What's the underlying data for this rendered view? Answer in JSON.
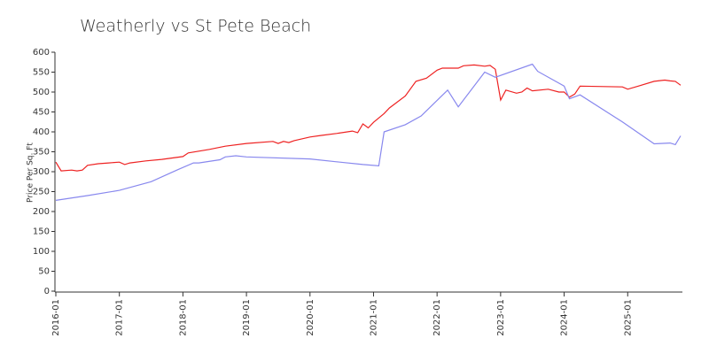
{
  "chart_data": {
    "type": "line",
    "title": "Weatherly vs St Pete Beach",
    "y_label": "Price Per Sq. Ft",
    "xlim": [
      "2016-01",
      "2025-11"
    ],
    "xticks": [
      "2016-01",
      "2017-01",
      "2018-01",
      "2019-01",
      "2020-01",
      "2021-01",
      "2022-01",
      "2023-01",
      "2024-01",
      "2025-01"
    ],
    "ylim": [
      0,
      600
    ],
    "yticks": [
      0,
      50,
      100,
      150,
      200,
      250,
      300,
      350,
      400,
      450,
      500,
      550,
      600
    ],
    "series": [
      {
        "color": "#ee2222",
        "x": [
          "2016-01",
          "2016-02",
          "2016-04",
          "2016-05",
          "2016-06",
          "2016-07",
          "2016-09",
          "2016-11",
          "2017-01",
          "2017-02",
          "2017-03",
          "2017-06",
          "2017-09",
          "2018-01",
          "2018-02",
          "2018-06",
          "2018-09",
          "2019-01",
          "2019-06",
          "2019-07",
          "2019-08",
          "2019-09",
          "2019-10",
          "2020-01",
          "2020-03",
          "2020-06",
          "2020-09",
          "2020-10",
          "2020-11",
          "2020-12",
          "2021-01",
          "2021-03",
          "2021-04",
          "2021-07",
          "2021-09",
          "2021-11",
          "2022-01",
          "2022-02",
          "2022-05",
          "2022-06",
          "2022-08",
          "2022-10",
          "2022-11",
          "2022-12",
          "2023-01",
          "2023-02",
          "2023-04",
          "2023-05",
          "2023-06",
          "2023-07",
          "2023-10",
          "2023-12",
          "2024-01",
          "2024-02",
          "2024-03",
          "2024-04",
          "2024-12",
          "2025-01",
          "2025-03",
          "2025-06",
          "2025-08",
          "2025-09",
          "2025-10",
          "2025-11"
        ],
        "values": [
          324,
          302,
          304,
          302,
          304,
          316,
          320,
          322,
          324,
          318,
          322,
          327,
          331,
          338,
          347,
          356,
          364,
          371,
          376,
          371,
          376,
          373,
          378,
          387,
          391,
          396,
          402,
          398,
          420,
          410,
          424,
          446,
          460,
          490,
          527,
          535,
          555,
          560,
          560,
          566,
          568,
          565,
          567,
          557,
          480,
          505,
          497,
          500,
          510,
          503,
          507,
          500,
          500,
          487,
          495,
          515,
          513,
          507,
          515,
          527,
          530,
          528,
          527,
          517
        ]
      },
      {
        "color": "#8888ee",
        "x": [
          "2016-01",
          "2016-07",
          "2017-01",
          "2017-07",
          "2017-12",
          "2018-03",
          "2018-04",
          "2018-08",
          "2018-09",
          "2018-11",
          "2019-01",
          "2020-01",
          "2020-06",
          "2020-11",
          "2021-02",
          "2021-03",
          "2021-07",
          "2021-10",
          "2022-03",
          "2022-05",
          "2022-10",
          "2022-12",
          "2023-07",
          "2023-08",
          "2024-01",
          "2024-02",
          "2024-04",
          "2024-12",
          "2025-06",
          "2025-09",
          "2025-10",
          "2025-11"
        ],
        "values": [
          228,
          240,
          253,
          275,
          305,
          322,
          322,
          330,
          337,
          340,
          337,
          332,
          325,
          318,
          315,
          400,
          418,
          440,
          505,
          463,
          550,
          537,
          570,
          552,
          515,
          483,
          493,
          425,
          370,
          372,
          368,
          390
        ]
      }
    ]
  }
}
